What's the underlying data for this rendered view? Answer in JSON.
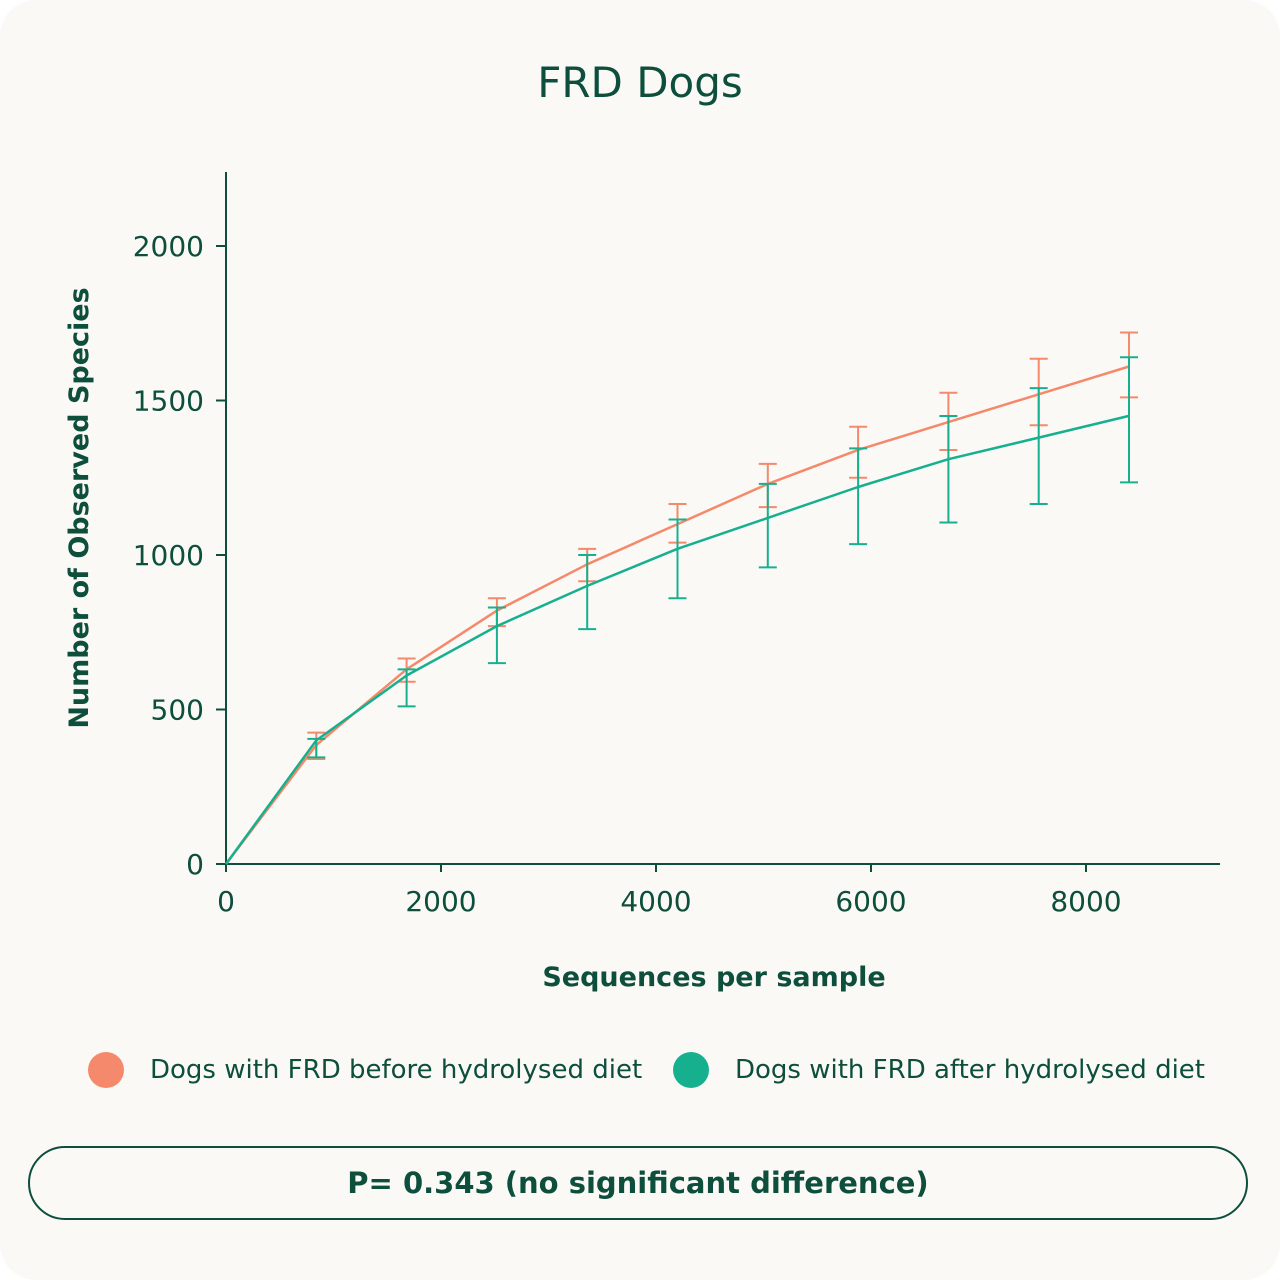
{
  "chart_data": {
    "type": "line",
    "title": "FRD Dogs",
    "xlabel": "Sequences per sample",
    "ylabel": "Number of Observed Species",
    "xlim": [
      0,
      9250
    ],
    "ylim": [
      0,
      2240
    ],
    "x_ticks": [
      0,
      2000,
      4000,
      6000,
      8000
    ],
    "y_ticks": [
      0,
      500,
      1000,
      1500,
      2000
    ],
    "x_tick_labels": [
      "0",
      "2000",
      "4000",
      "6000",
      "8000"
    ],
    "y_tick_labels": [
      "0",
      "500",
      "1000",
      "1500",
      "2000"
    ],
    "x": [
      0,
      840,
      1680,
      2520,
      3360,
      4200,
      5040,
      5880,
      6720,
      7560,
      8400
    ],
    "series": [
      {
        "name": "Dogs with FRD before hydrolysed diet",
        "color": "#f4896b",
        "values": [
          0,
          385,
          630,
          820,
          970,
          1100,
          1230,
          1340,
          1430,
          1520,
          1610
        ],
        "err_low": [
          0,
          340,
          590,
          770,
          915,
          1040,
          1155,
          1250,
          1340,
          1420,
          1510
        ],
        "err_high": [
          0,
          425,
          665,
          860,
          1020,
          1165,
          1295,
          1415,
          1525,
          1635,
          1720
        ]
      },
      {
        "name": "Dogs with FRD after hydrolysed diet",
        "color": "#17b08f",
        "values": [
          0,
          400,
          610,
          770,
          900,
          1020,
          1120,
          1220,
          1310,
          1380,
          1450
        ],
        "err_low": [
          0,
          345,
          510,
          650,
          760,
          860,
          960,
          1035,
          1105,
          1165,
          1235
        ],
        "err_high": [
          0,
          405,
          630,
          830,
          1000,
          1115,
          1230,
          1345,
          1450,
          1540,
          1640
        ]
      }
    ],
    "p_value_text": "P= 0.343 (no significant difference)"
  },
  "legend": {
    "before_label": "Dogs with FRD before hydrolysed diet",
    "after_label": "Dogs with FRD after hydrolysed diet"
  },
  "colors": {
    "text": "#0d4f3c",
    "axis": "#0d4f3c",
    "background": "#fbf9f6"
  }
}
